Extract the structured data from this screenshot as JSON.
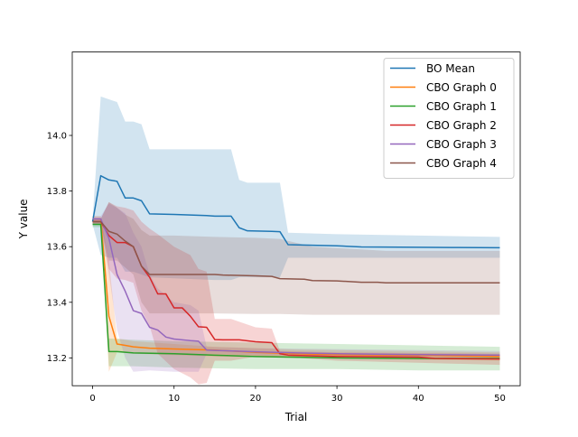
{
  "chart_data": {
    "type": "line",
    "xlabel": "Trial",
    "ylabel": "Y value",
    "xlim": [
      -2.5,
      52.5
    ],
    "ylim": [
      13.1,
      14.3
    ],
    "x_ticks": [
      0,
      10,
      20,
      30,
      40,
      50
    ],
    "y_ticks": [
      13.2,
      13.4,
      13.6,
      13.8,
      14.0
    ],
    "x_tick_labels": [
      "0",
      "10",
      "20",
      "30",
      "40",
      "50"
    ],
    "y_tick_labels": [
      "13.2",
      "13.4",
      "13.6",
      "13.8",
      "14.0"
    ],
    "legend_position": "top-right",
    "band_opacity": 0.2,
    "series": [
      {
        "name": "BO Mean",
        "color": "#1f77b4",
        "points": [
          [
            0,
            13.69
          ],
          [
            1,
            13.855
          ],
          [
            2,
            13.84
          ],
          [
            3,
            13.835
          ],
          [
            4,
            13.775
          ],
          [
            5,
            13.775
          ],
          [
            6,
            13.765
          ],
          [
            7,
            13.718
          ],
          [
            10,
            13.716
          ],
          [
            12,
            13.714
          ],
          [
            14,
            13.712
          ],
          [
            15,
            13.71
          ],
          [
            17,
            13.71
          ],
          [
            18,
            13.668
          ],
          [
            19,
            13.657
          ],
          [
            22,
            13.655
          ],
          [
            23,
            13.654
          ],
          [
            24,
            13.607
          ],
          [
            30,
            13.603
          ],
          [
            33,
            13.599
          ],
          [
            40,
            13.598
          ],
          [
            44,
            13.597
          ],
          [
            50,
            13.596
          ]
        ],
        "band_upper": [
          [
            0,
            13.7
          ],
          [
            1,
            14.14
          ],
          [
            2,
            14.13
          ],
          [
            3,
            14.12
          ],
          [
            4,
            14.05
          ],
          [
            5,
            14.05
          ],
          [
            6,
            14.04
          ],
          [
            7,
            13.95
          ],
          [
            15,
            13.95
          ],
          [
            17,
            13.95
          ],
          [
            18,
            13.84
          ],
          [
            19,
            13.83
          ],
          [
            22,
            13.83
          ],
          [
            23,
            13.83
          ],
          [
            24,
            13.65
          ],
          [
            30,
            13.645
          ],
          [
            40,
            13.64
          ],
          [
            50,
            13.635
          ]
        ],
        "band_lower": [
          [
            0,
            13.68
          ],
          [
            1,
            13.57
          ],
          [
            2,
            13.56
          ],
          [
            3,
            13.56
          ],
          [
            4,
            13.51
          ],
          [
            5,
            13.51
          ],
          [
            6,
            13.5
          ],
          [
            7,
            13.49
          ],
          [
            15,
            13.48
          ],
          [
            17,
            13.48
          ],
          [
            18,
            13.49
          ],
          [
            19,
            13.49
          ],
          [
            22,
            13.49
          ],
          [
            23,
            13.49
          ],
          [
            24,
            13.56
          ],
          [
            30,
            13.56
          ],
          [
            40,
            13.56
          ],
          [
            50,
            13.56
          ]
        ]
      },
      {
        "name": "CBO Graph 0",
        "color": "#ff7f0e",
        "points": [
          [
            0,
            13.7
          ],
          [
            1,
            13.7
          ],
          [
            2,
            13.35
          ],
          [
            3,
            13.25
          ],
          [
            4,
            13.245
          ],
          [
            5,
            13.24
          ],
          [
            7,
            13.235
          ],
          [
            10,
            13.232
          ],
          [
            15,
            13.228
          ],
          [
            20,
            13.22
          ],
          [
            25,
            13.215
          ],
          [
            30,
            13.212
          ],
          [
            40,
            13.21
          ],
          [
            50,
            13.205
          ]
        ],
        "band_upper": [
          [
            0,
            13.71
          ],
          [
            1,
            13.71
          ],
          [
            2,
            13.55
          ],
          [
            3,
            13.27
          ],
          [
            5,
            13.26
          ],
          [
            10,
            13.25
          ],
          [
            15,
            13.24
          ],
          [
            25,
            13.23
          ],
          [
            50,
            13.22
          ]
        ],
        "band_lower": [
          [
            0,
            13.69
          ],
          [
            1,
            13.69
          ],
          [
            2,
            13.15
          ],
          [
            3,
            13.22
          ],
          [
            5,
            13.215
          ],
          [
            10,
            13.21
          ],
          [
            15,
            13.205
          ],
          [
            25,
            13.2
          ],
          [
            50,
            13.19
          ]
        ]
      },
      {
        "name": "CBO Graph 1",
        "color": "#2ca02c",
        "points": [
          [
            0,
            13.68
          ],
          [
            1,
            13.68
          ],
          [
            2,
            13.223
          ],
          [
            3,
            13.223
          ],
          [
            5,
            13.218
          ],
          [
            10,
            13.215
          ],
          [
            15,
            13.21
          ],
          [
            20,
            13.205
          ],
          [
            30,
            13.2
          ],
          [
            40,
            13.198
          ],
          [
            50,
            13.198
          ]
        ],
        "band_upper": [
          [
            0,
            13.69
          ],
          [
            1,
            13.69
          ],
          [
            2,
            13.27
          ],
          [
            5,
            13.265
          ],
          [
            10,
            13.26
          ],
          [
            20,
            13.255
          ],
          [
            30,
            13.25
          ],
          [
            40,
            13.245
          ],
          [
            50,
            13.24
          ]
        ],
        "band_lower": [
          [
            0,
            13.67
          ],
          [
            1,
            13.67
          ],
          [
            2,
            13.17
          ],
          [
            5,
            13.17
          ],
          [
            10,
            13.165
          ],
          [
            20,
            13.16
          ],
          [
            30,
            13.16
          ],
          [
            40,
            13.155
          ],
          [
            50,
            13.155
          ]
        ]
      },
      {
        "name": "CBO Graph 2",
        "color": "#d62728",
        "points": [
          [
            0,
            13.69
          ],
          [
            1,
            13.69
          ],
          [
            2,
            13.64
          ],
          [
            3,
            13.615
          ],
          [
            4,
            13.615
          ],
          [
            5,
            13.6
          ],
          [
            6,
            13.53
          ],
          [
            7,
            13.49
          ],
          [
            8,
            13.43
          ],
          [
            9,
            13.43
          ],
          [
            10,
            13.38
          ],
          [
            11,
            13.38
          ],
          [
            12,
            13.35
          ],
          [
            13,
            13.312
          ],
          [
            14,
            13.31
          ],
          [
            15,
            13.266
          ],
          [
            16,
            13.265
          ],
          [
            18,
            13.265
          ],
          [
            20,
            13.258
          ],
          [
            22,
            13.255
          ],
          [
            23,
            13.215
          ],
          [
            24,
            13.21
          ],
          [
            30,
            13.205
          ],
          [
            40,
            13.203
          ],
          [
            42,
            13.198
          ],
          [
            50,
            13.196
          ]
        ],
        "band_upper": [
          [
            0,
            13.7
          ],
          [
            1,
            13.7
          ],
          [
            2,
            13.76
          ],
          [
            3,
            13.745
          ],
          [
            4,
            13.74
          ],
          [
            5,
            13.73
          ],
          [
            6,
            13.69
          ],
          [
            7,
            13.665
          ],
          [
            8,
            13.645
          ],
          [
            10,
            13.6
          ],
          [
            12,
            13.57
          ],
          [
            13,
            13.52
          ],
          [
            14,
            13.51
          ],
          [
            15,
            13.34
          ],
          [
            17,
            13.34
          ],
          [
            20,
            13.31
          ],
          [
            22,
            13.305
          ],
          [
            23,
            13.225
          ],
          [
            30,
            13.22
          ],
          [
            50,
            13.215
          ]
        ],
        "band_lower": [
          [
            0,
            13.68
          ],
          [
            1,
            13.68
          ],
          [
            2,
            13.52
          ],
          [
            3,
            13.485
          ],
          [
            4,
            13.48
          ],
          [
            5,
            13.47
          ],
          [
            6,
            13.37
          ],
          [
            7,
            13.315
          ],
          [
            8,
            13.215
          ],
          [
            10,
            13.16
          ],
          [
            12,
            13.13
          ],
          [
            13,
            13.105
          ],
          [
            14,
            13.11
          ],
          [
            15,
            13.19
          ],
          [
            17,
            13.19
          ],
          [
            20,
            13.205
          ],
          [
            22,
            13.205
          ],
          [
            23,
            13.205
          ],
          [
            30,
            13.19
          ],
          [
            50,
            13.175
          ]
        ]
      },
      {
        "name": "CBO Graph 3",
        "color": "#9467bd",
        "points": [
          [
            0,
            13.7
          ],
          [
            1,
            13.7
          ],
          [
            2,
            13.63
          ],
          [
            3,
            13.5
          ],
          [
            4,
            13.44
          ],
          [
            5,
            13.37
          ],
          [
            6,
            13.36
          ],
          [
            7,
            13.31
          ],
          [
            8,
            13.3
          ],
          [
            9,
            13.275
          ],
          [
            10,
            13.268
          ],
          [
            12,
            13.262
          ],
          [
            13,
            13.26
          ],
          [
            14,
            13.228
          ],
          [
            15,
            13.227
          ],
          [
            20,
            13.222
          ],
          [
            25,
            13.218
          ],
          [
            30,
            13.215
          ],
          [
            40,
            13.212
          ],
          [
            50,
            13.21
          ]
        ],
        "band_upper": [
          [
            0,
            13.71
          ],
          [
            1,
            13.71
          ],
          [
            2,
            13.755
          ],
          [
            3,
            13.74
          ],
          [
            4,
            13.72
          ],
          [
            5,
            13.65
          ],
          [
            6,
            13.6
          ],
          [
            7,
            13.5
          ],
          [
            8,
            13.45
          ],
          [
            10,
            13.4
          ],
          [
            12,
            13.39
          ],
          [
            13,
            13.37
          ],
          [
            14,
            13.24
          ],
          [
            20,
            13.235
          ],
          [
            50,
            13.225
          ]
        ],
        "band_lower": [
          [
            0,
            13.69
          ],
          [
            1,
            13.69
          ],
          [
            2,
            13.5
          ],
          [
            3,
            13.3
          ],
          [
            4,
            13.2
          ],
          [
            5,
            13.15
          ],
          [
            7,
            13.155
          ],
          [
            10,
            13.15
          ],
          [
            13,
            13.15
          ],
          [
            14,
            13.215
          ],
          [
            20,
            13.21
          ],
          [
            50,
            13.2
          ]
        ]
      },
      {
        "name": "CBO Graph 4",
        "color": "#8c564b",
        "points": [
          [
            0,
            13.69
          ],
          [
            1,
            13.69
          ],
          [
            2,
            13.655
          ],
          [
            3,
            13.645
          ],
          [
            4,
            13.62
          ],
          [
            5,
            13.6
          ],
          [
            6,
            13.53
          ],
          [
            7,
            13.5
          ],
          [
            10,
            13.5
          ],
          [
            15,
            13.5
          ],
          [
            16,
            13.498
          ],
          [
            20,
            13.495
          ],
          [
            22,
            13.493
          ],
          [
            23,
            13.485
          ],
          [
            26,
            13.483
          ],
          [
            27,
            13.478
          ],
          [
            30,
            13.477
          ],
          [
            33,
            13.472
          ],
          [
            35,
            13.472
          ],
          [
            36,
            13.47
          ],
          [
            50,
            13.47
          ]
        ],
        "band_upper": [
          [
            0,
            13.7
          ],
          [
            1,
            13.7
          ],
          [
            2,
            13.76
          ],
          [
            3,
            13.74
          ],
          [
            4,
            13.715
          ],
          [
            5,
            13.7
          ],
          [
            6,
            13.66
          ],
          [
            7,
            13.64
          ],
          [
            10,
            13.64
          ],
          [
            15,
            13.635
          ],
          [
            20,
            13.632
          ],
          [
            23,
            13.628
          ],
          [
            27,
            13.6
          ],
          [
            33,
            13.59
          ],
          [
            36,
            13.585
          ],
          [
            50,
            13.585
          ]
        ],
        "band_lower": [
          [
            0,
            13.68
          ],
          [
            1,
            13.68
          ],
          [
            2,
            13.55
          ],
          [
            3,
            13.55
          ],
          [
            4,
            13.525
          ],
          [
            5,
            13.5
          ],
          [
            6,
            13.4
          ],
          [
            7,
            13.36
          ],
          [
            10,
            13.36
          ],
          [
            15,
            13.36
          ],
          [
            20,
            13.358
          ],
          [
            23,
            13.358
          ],
          [
            27,
            13.355
          ],
          [
            36,
            13.355
          ],
          [
            50,
            13.355
          ]
        ]
      }
    ]
  }
}
